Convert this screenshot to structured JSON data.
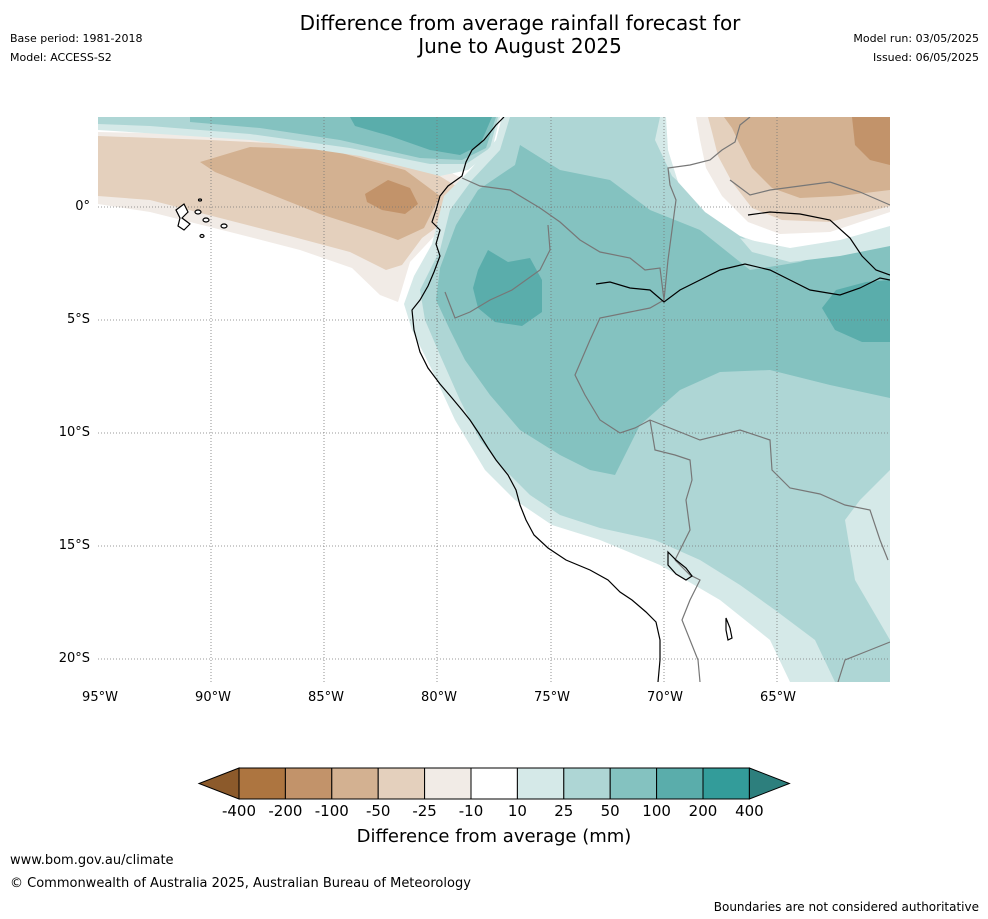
{
  "header": {
    "base_period": "Base period: 1981-2018",
    "model": "Model: ACCESS-S2",
    "title_line1": "Difference from average rainfall forecast for",
    "title_line2": "June to August 2025",
    "model_run": "Model run: 03/05/2025",
    "issued": "Issued: 06/05/2025"
  },
  "map": {
    "lat_labels": [
      "0°",
      "5°S",
      "10°S",
      "15°S",
      "20°S"
    ],
    "lon_labels": [
      "95°W",
      "90°W",
      "85°W",
      "80°W",
      "75°W",
      "70°W",
      "65°W"
    ],
    "gridlines": true
  },
  "colorbar": {
    "ticks": [
      "-400",
      "-200",
      "-100",
      "-50",
      "-25",
      "-10",
      "10",
      "25",
      "50",
      "100",
      "200",
      "400"
    ],
    "colors": [
      "#8c5a2b",
      "#ad7540",
      "#c2936a",
      "#d3b191",
      "#e4d0bd",
      "#f1ebe6",
      "#ffffff",
      "#d5e9e8",
      "#aed6d5",
      "#84c2c0",
      "#5aadab",
      "#339c9a",
      "#2d7f7d"
    ],
    "label": "Difference from average (mm)"
  },
  "footer": {
    "url": "www.bom.gov.au/climate",
    "copyright": "© Commonwealth of Australia 2025, Australian Bureau of Meteorology",
    "note": "Boundaries are not considered authoritative"
  }
}
